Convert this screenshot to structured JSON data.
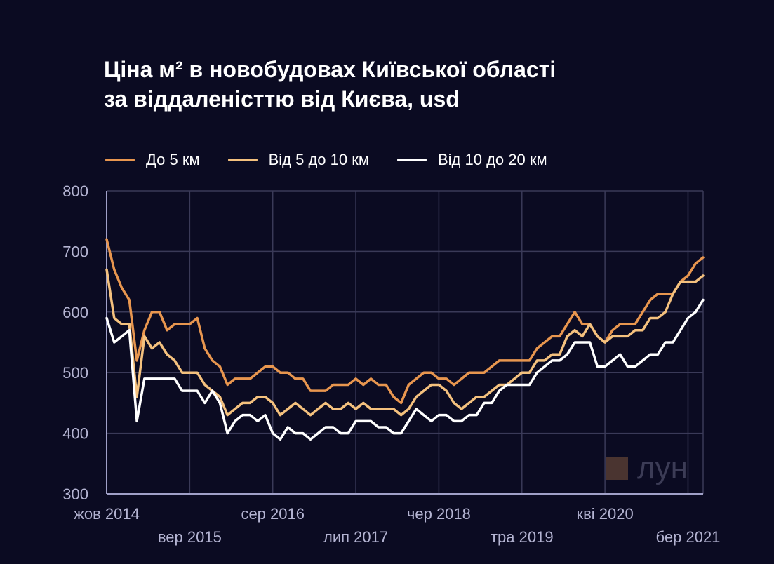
{
  "title": {
    "line1": "Ціна м² в новобудовах Київської області",
    "line2": "за віддаленісттю від Києва, usd"
  },
  "watermark": "лун",
  "colors": {
    "background": "#0b0b22",
    "grid": "#3a3a58",
    "axis": "#a0a0c8",
    "tick_text": "#b4b4d2"
  },
  "chart_data": {
    "type": "line",
    "title": "Ціна м² в новобудовах Київської області за віддаленісттю від Києва, usd",
    "ylim": [
      300,
      800
    ],
    "yticks": [
      300,
      400,
      500,
      600,
      700,
      800
    ],
    "x_tick_labels": [
      {
        "label": "жов 2014",
        "index": 0
      },
      {
        "label": "вер 2015",
        "index": 11
      },
      {
        "label": "сер 2016",
        "index": 22
      },
      {
        "label": "лип 2017",
        "index": 33
      },
      {
        "label": "чер 2018",
        "index": 44
      },
      {
        "label": "тра 2019",
        "index": 55
      },
      {
        "label": "кві 2020",
        "index": 66
      },
      {
        "label": "бер 2021",
        "index": 77
      }
    ],
    "x_range": [
      0,
      79
    ],
    "grid": true,
    "legend_position": "top-left",
    "series": [
      {
        "name": "До 5 км",
        "color": "#e8964f",
        "values": [
          720,
          670,
          640,
          620,
          520,
          570,
          600,
          600,
          570,
          580,
          580,
          580,
          590,
          540,
          520,
          510,
          480,
          490,
          490,
          490,
          500,
          510,
          510,
          500,
          500,
          490,
          490,
          470,
          470,
          470,
          480,
          480,
          480,
          490,
          480,
          490,
          480,
          480,
          460,
          450,
          480,
          490,
          500,
          500,
          490,
          490,
          480,
          490,
          500,
          500,
          500,
          510,
          520,
          520,
          520,
          520,
          520,
          540,
          550,
          560,
          560,
          580,
          600,
          580,
          580,
          560,
          550,
          570,
          580,
          580,
          580,
          600,
          620,
          630,
          630,
          630,
          650,
          660,
          680,
          690
        ]
      },
      {
        "name": "Від 5 до 10 км",
        "color": "#f4c17e",
        "values": [
          670,
          590,
          580,
          580,
          460,
          560,
          540,
          550,
          530,
          520,
          500,
          500,
          500,
          480,
          470,
          460,
          430,
          440,
          450,
          450,
          460,
          460,
          450,
          430,
          440,
          450,
          440,
          430,
          440,
          450,
          440,
          440,
          450,
          440,
          450,
          440,
          440,
          440,
          440,
          430,
          440,
          460,
          470,
          480,
          480,
          470,
          450,
          440,
          450,
          460,
          460,
          470,
          480,
          480,
          490,
          500,
          500,
          520,
          520,
          530,
          530,
          560,
          570,
          560,
          580,
          560,
          550,
          560,
          560,
          560,
          570,
          570,
          590,
          590,
          600,
          630,
          650,
          650,
          650,
          660
        ]
      },
      {
        "name": "Від 10 до 20 км",
        "color": "#ffffff",
        "values": [
          590,
          550,
          560,
          570,
          420,
          490,
          490,
          490,
          490,
          490,
          470,
          470,
          470,
          450,
          470,
          450,
          400,
          420,
          430,
          430,
          420,
          430,
          400,
          390,
          410,
          400,
          400,
          390,
          400,
          410,
          410,
          400,
          400,
          420,
          420,
          420,
          410,
          410,
          400,
          400,
          420,
          440,
          430,
          420,
          430,
          430,
          420,
          420,
          430,
          430,
          450,
          450,
          470,
          480,
          480,
          480,
          480,
          500,
          510,
          520,
          520,
          530,
          550,
          550,
          550,
          510,
          510,
          520,
          530,
          510,
          510,
          520,
          530,
          530,
          550,
          550,
          570,
          590,
          600,
          620
        ]
      }
    ]
  }
}
